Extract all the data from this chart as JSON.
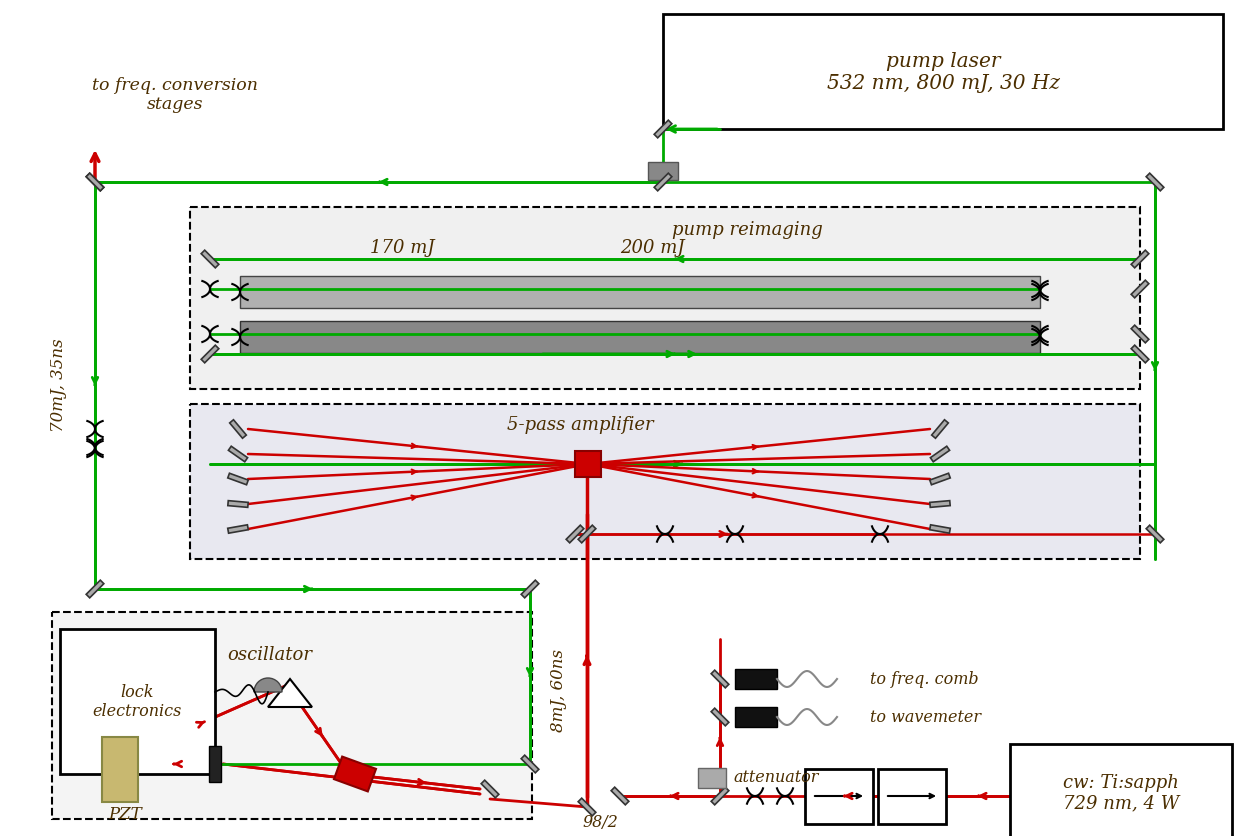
{
  "bg_color": "#ffffff",
  "green": "#00aa00",
  "red": "#cc0000",
  "gray": "#888888",
  "text_color": "#4B2E00",
  "pump_laser_text": "pump laser\n532 nm, 800 mJ, 30 Hz",
  "pump_reimaging_text": "pump reimaging",
  "amplifier_text": "5-pass amplifier",
  "oscillator_text": "oscillator",
  "lock_text": "lock\nelectronics",
  "pzt_text": "PZT",
  "label_170mJ": "170 mJ",
  "label_200mJ": "200 mJ",
  "label_70mJ": "70mJ, 35ns",
  "label_8mJ": "8mJ, 60ns",
  "label_98_2": "98/2",
  "attenuator_text": "attenuator",
  "freq_comb_text": "to freq. comb",
  "wavemeter_text": "to wavemeter",
  "cw_text": "cw: Ti:sapph\n729 nm, 4 W",
  "freq_conv_text": "to freq. conversion\nstages"
}
